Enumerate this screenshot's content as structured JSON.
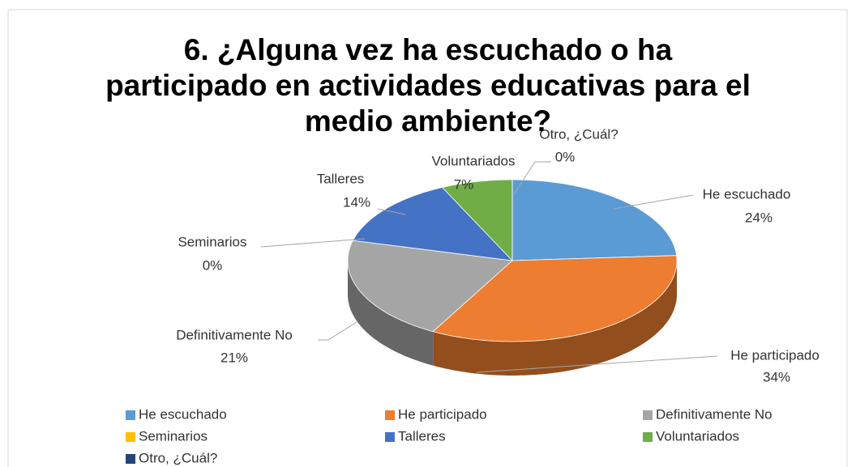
{
  "chart_data": {
    "type": "pie3d",
    "title": "6. ¿Alguna vez ha escuchado o ha  participado en actividades educativas para el medio ambiente?",
    "categories": [
      "He escuchado",
      "He participado",
      "Definitivamente No",
      "Seminarios",
      "Talleres",
      "Voluntariados",
      "Otro, ¿Cuál?"
    ],
    "values": [
      24,
      34,
      21,
      0,
      14,
      7,
      0
    ],
    "value_labels": [
      "24%",
      "34%",
      "21%",
      "0%",
      "14%",
      "7%",
      "0%"
    ],
    "colors": [
      "#5b9bd5",
      "#ed7d31",
      "#a5a5a5",
      "#ffc000",
      "#4472c4",
      "#70ad47",
      "#264478"
    ],
    "legend": "bottom"
  }
}
